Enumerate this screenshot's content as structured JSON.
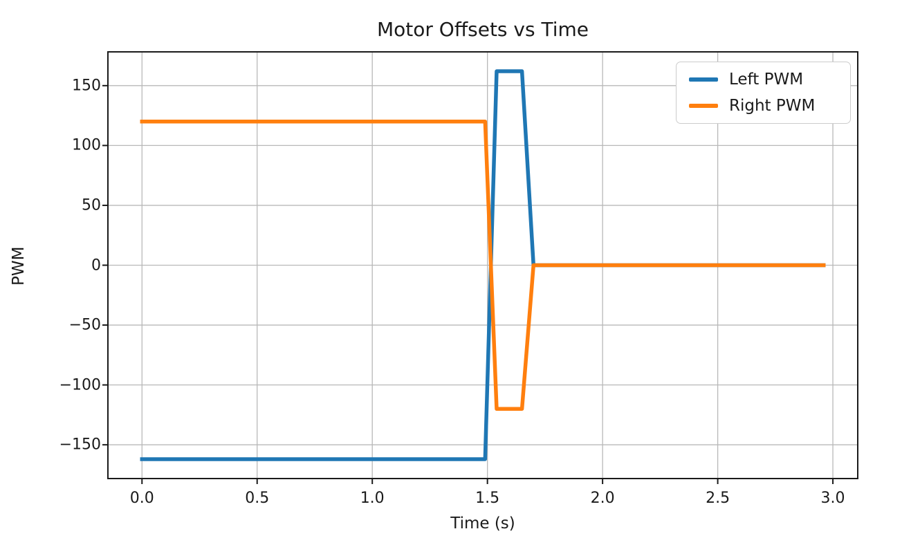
{
  "chart_data": {
    "type": "line",
    "title": "Motor Offsets vs Time",
    "xlabel": "Time (s)",
    "ylabel": "PWM",
    "xlim": [
      -0.148,
      3.108
    ],
    "ylim": [
      -178.2,
      178.2
    ],
    "grid": true,
    "legend_position": "upper right",
    "xticks": [
      0.0,
      0.5,
      1.0,
      1.5,
      2.0,
      2.5,
      3.0
    ],
    "xtick_labels": [
      "0.0",
      "0.5",
      "1.0",
      "1.5",
      "2.0",
      "2.5",
      "3.0"
    ],
    "yticks": [
      -150,
      -100,
      -50,
      0,
      50,
      100,
      150
    ],
    "ytick_labels": [
      "−150",
      "−100",
      "−50",
      "0",
      "50",
      "100",
      "150"
    ],
    "series": [
      {
        "name": "Left PWM",
        "color": "#1f77b4",
        "points": [
          [
            0.0,
            -162
          ],
          [
            1.49,
            -162
          ],
          [
            1.54,
            162
          ],
          [
            1.65,
            162
          ],
          [
            1.7,
            0
          ],
          [
            2.96,
            0
          ]
        ]
      },
      {
        "name": "Right PWM",
        "color": "#ff7f0e",
        "points": [
          [
            0.0,
            120
          ],
          [
            1.49,
            120
          ],
          [
            1.54,
            -120
          ],
          [
            1.65,
            -120
          ],
          [
            1.7,
            0
          ],
          [
            2.96,
            0
          ]
        ]
      }
    ]
  },
  "styles": {
    "grid_color": "#b8b8b8",
    "spine_color": "#1a1a1a",
    "text_color": "#1a1a1a",
    "background": "#ffffff",
    "line_width": 5.5,
    "grid_width": 1.3,
    "spine_width": 2,
    "tick_length": 8
  }
}
